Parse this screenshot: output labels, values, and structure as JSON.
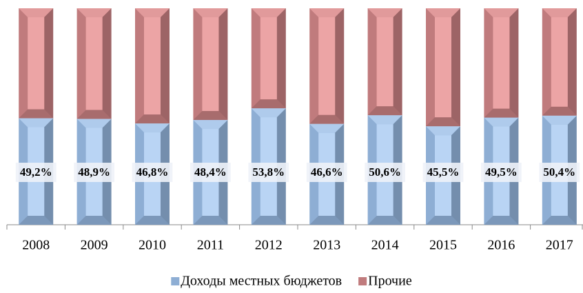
{
  "chart_data": {
    "type": "stacked_bar_100",
    "categories": [
      "2008",
      "2009",
      "2010",
      "2011",
      "2012",
      "2013",
      "2014",
      "2015",
      "2016",
      "2017"
    ],
    "series": [
      {
        "name": "Доходы местных бюджетов",
        "color": "#8eaed4",
        "face": "#b9d4f4",
        "values": [
          49.2,
          48.9,
          46.8,
          48.4,
          53.8,
          46.6,
          50.6,
          45.5,
          49.5,
          50.4
        ],
        "value_labels": [
          "49,2%",
          "48,9%",
          "46,8%",
          "48,4%",
          "53,8%",
          "46,6%",
          "50,6%",
          "45,5%",
          "49,5%",
          "50,4%"
        ]
      },
      {
        "name": "Прочие",
        "color": "#c07b7d",
        "face": "#eca4a5",
        "values": [
          50.8,
          51.1,
          53.2,
          51.6,
          46.2,
          53.4,
          49.4,
          54.5,
          50.5,
          49.6
        ]
      }
    ],
    "ylim": [
      0,
      100
    ]
  }
}
